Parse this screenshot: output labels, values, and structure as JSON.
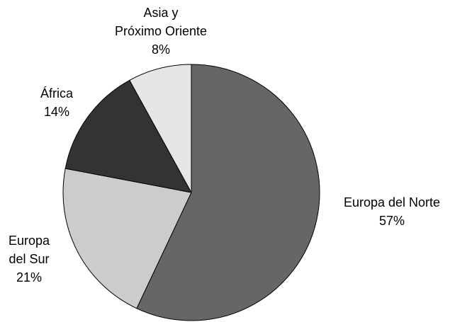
{
  "chart_data": {
    "type": "pie",
    "start_angle_deg": 0,
    "direction": "clockwise",
    "slices": [
      {
        "id": "norte",
        "label_lines": [
          "Europa del Norte"
        ],
        "percent_label": "57%",
        "value": 57,
        "color": "#666666"
      },
      {
        "id": "sur",
        "label_lines": [
          "Europa",
          "del Sur"
        ],
        "percent_label": "21%",
        "value": 21,
        "color": "#cccccc"
      },
      {
        "id": "africa",
        "label_lines": [
          "África"
        ],
        "percent_label": "14%",
        "value": 14,
        "color": "#333333"
      },
      {
        "id": "asia",
        "label_lines": [
          "Asia y",
          "Próximo Oriente"
        ],
        "percent_label": "8%",
        "value": 8,
        "color": "#e6e6e6"
      }
    ]
  }
}
